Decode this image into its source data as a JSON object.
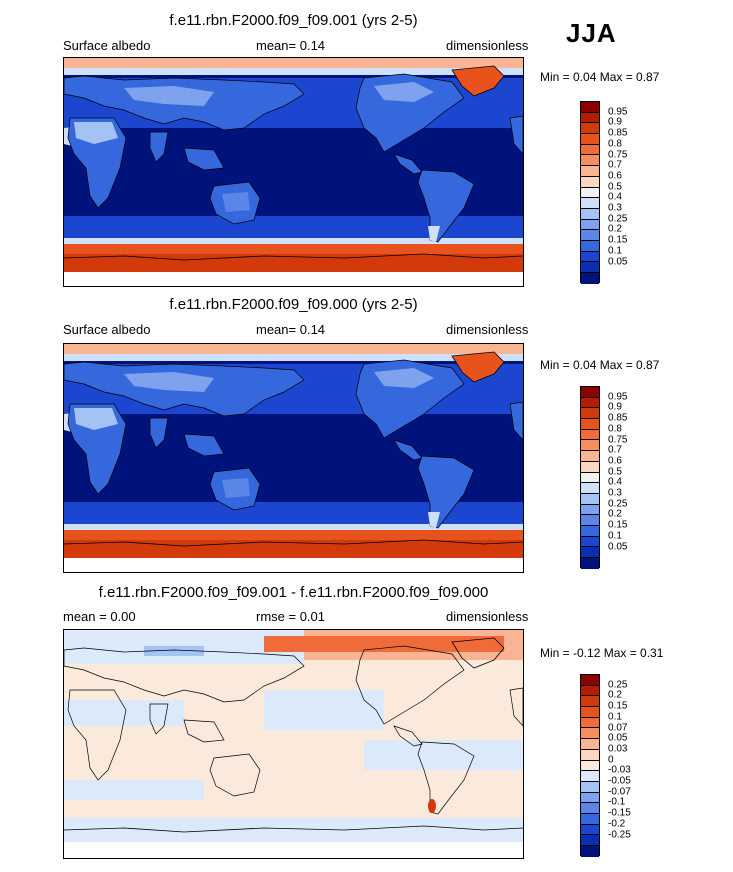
{
  "season": "JJA",
  "panels": [
    {
      "title": "f.e11.rbn.F2000.f09_f09.001 (yrs 2-5)",
      "left": "Surface albedo",
      "center": "mean=   0.14",
      "right": "dimensionless",
      "minmax": "Min =   0.04 Max =   0.87",
      "levels": [
        "0.95",
        "0.9",
        "0.85",
        "0.8",
        "0.75",
        "0.7",
        "0.6",
        "0.5",
        "0.4",
        "0.3",
        "0.25",
        "0.2",
        "0.15",
        "0.1",
        "0.05"
      ],
      "colors": [
        "#8b0000",
        "#b41e00",
        "#d33a0b",
        "#e8531d",
        "#f06b3a",
        "#f68d60",
        "#f8b493",
        "#fbd7c2",
        "#f1f1f1",
        "#cfe0fb",
        "#a4c2f4",
        "#7ea2ee",
        "#5b86e8",
        "#3567dd",
        "#1c46cf",
        "#0b2fb2",
        "#00137d"
      ]
    },
    {
      "title": "f.e11.rbn.F2000.f09_f09.000 (yrs 2-5)",
      "left": "Surface albedo",
      "center": "mean=   0.14",
      "right": "dimensionless",
      "minmax": "Min =   0.04 Max =   0.87",
      "levels": [
        "0.95",
        "0.9",
        "0.85",
        "0.8",
        "0.75",
        "0.7",
        "0.6",
        "0.5",
        "0.4",
        "0.3",
        "0.25",
        "0.2",
        "0.15",
        "0.1",
        "0.05"
      ],
      "colors": [
        "#8b0000",
        "#b41e00",
        "#d33a0b",
        "#e8531d",
        "#f06b3a",
        "#f68d60",
        "#f8b493",
        "#fbd7c2",
        "#f1f1f1",
        "#cfe0fb",
        "#a4c2f4",
        "#7ea2ee",
        "#5b86e8",
        "#3567dd",
        "#1c46cf",
        "#0b2fb2",
        "#00137d"
      ]
    },
    {
      "title": "f.e11.rbn.F2000.f09_f09.001 - f.e11.rbn.F2000.f09_f09.000",
      "left": "mean =   0.00",
      "center": "rmse =   0.01",
      "right": "dimensionless",
      "minmax": "Min =  -0.12 Max =   0.31",
      "levels": [
        "0.25",
        "0.2",
        "0.15",
        "0.1",
        "0.07",
        "0.05",
        "0.03",
        "0",
        "-0.03",
        "-0.05",
        "-0.07",
        "-0.1",
        "-0.15",
        "-0.2",
        "-0.25"
      ],
      "colors": [
        "#8b0000",
        "#b41e00",
        "#d33a0b",
        "#e8531d",
        "#f06b3a",
        "#f68d60",
        "#f8b493",
        "#fbd7c2",
        "#fbe9dc",
        "#dce9fb",
        "#a4c2f4",
        "#7ea2ee",
        "#5b86e8",
        "#3567dd",
        "#1c46cf",
        "#0b2fb2",
        "#00137d"
      ]
    }
  ]
}
